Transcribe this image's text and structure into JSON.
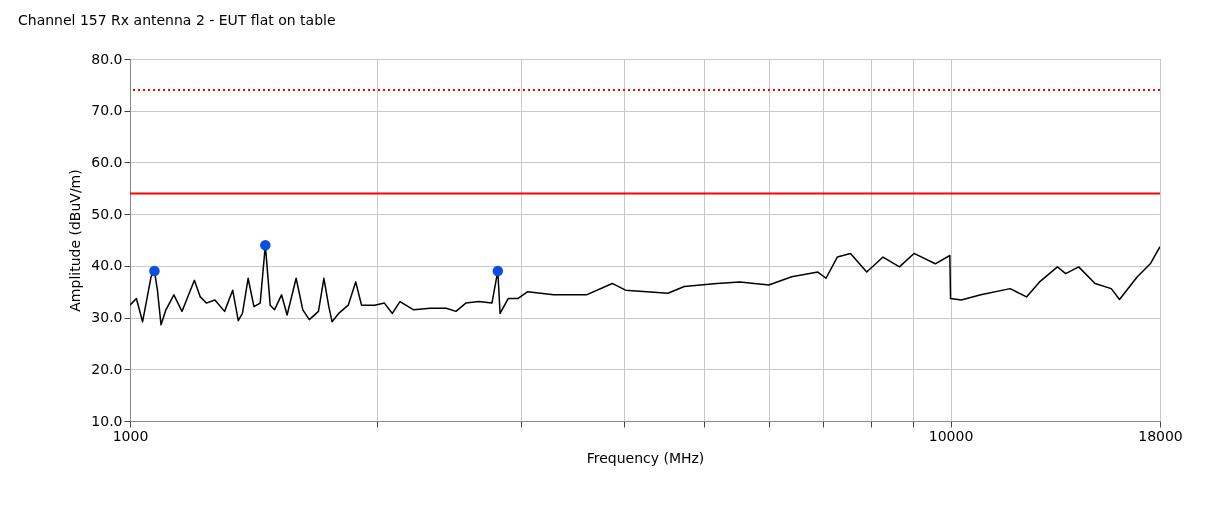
{
  "chart_data": {
    "type": "line",
    "title": "Channel 157 Rx antenna 2 - EUT flat on table",
    "xlabel": "Frequency (MHz)",
    "ylabel": "Amplitude (dBuV/m)",
    "log": "x",
    "grid": true,
    "xlim": [
      1000,
      18000
    ],
    "xticks": [
      1000,
      {
        "value": 2000,
        "label": null
      },
      {
        "value": 3000,
        "label": null
      },
      {
        "value": 4000,
        "label": null
      },
      {
        "value": 5000,
        "label": null
      },
      {
        "value": 6000,
        "label": null
      },
      {
        "value": 7000,
        "label": null
      },
      {
        "value": 8000,
        "label": null
      },
      {
        "value": 9000,
        "label": null
      },
      10000,
      18000
    ],
    "ylim": [
      10,
      80
    ],
    "yticks": [
      {
        "value": 10,
        "label": "10.0"
      },
      {
        "value": 20,
        "label": "20.0"
      },
      {
        "value": 30,
        "label": "30.0"
      },
      {
        "value": 40,
        "label": "40.0"
      },
      {
        "value": 50,
        "label": "50.0"
      },
      {
        "value": 60,
        "label": "60.0"
      },
      {
        "value": 70,
        "label": "70.0"
      },
      {
        "value": 80,
        "label": "80.0"
      }
    ],
    "ref_lines": [
      {
        "axis": "y",
        "value": 74,
        "color": "#ff0000",
        "line_style": "dotted"
      },
      {
        "axis": "y",
        "value": 54,
        "color": "#ff0000",
        "line_style": "solid"
      }
    ],
    "series": [
      {
        "type": "line",
        "color": "#000000",
        "marker": "none",
        "x": [
          1000,
          1018,
          1036,
          1061,
          1071,
          1080,
          1091,
          1106,
          1131,
          1157,
          1172,
          1198,
          1218,
          1239,
          1269,
          1304,
          1334,
          1355,
          1371,
          1393,
          1416,
          1441,
          1462,
          1482,
          1500,
          1530,
          1554,
          1594,
          1624,
          1654,
          1697,
          1723,
          1747,
          1763,
          1796,
          1845,
          1884,
          1915,
          1987,
          2042,
          2088,
          2133,
          2217,
          2321,
          2429,
          2496,
          2566,
          2661,
          2761,
          2807,
          2825,
          2891,
          2972,
          3053,
          3282,
          3600,
          3870,
          4017,
          4525,
          4737,
          5190,
          5533,
          6006,
          6404,
          6891,
          7051,
          7278,
          7551,
          7904,
          8275,
          8664,
          9027,
          9581,
          9980,
          10000,
          10307,
          10888,
          11822,
          12377,
          12837,
          13499,
          13814,
          14328,
          15001,
          15700,
          16066,
          16890,
          17516,
          18000
        ],
        "values": [
          32.4,
          33.7,
          29.2,
          37.9,
          39,
          35.3,
          28.6,
          31.5,
          34.4,
          31.2,
          33.4,
          37.2,
          34,
          32.8,
          33.4,
          31.2,
          35.3,
          29.4,
          30.8,
          37.6,
          32.1,
          32.8,
          44,
          32.4,
          31.5,
          34.4,
          30.5,
          37.6,
          31.5,
          29.6,
          31.2,
          37.6,
          32.1,
          29.2,
          30.8,
          32.4,
          36.9,
          32.4,
          32.4,
          32.8,
          30.8,
          33.1,
          31.5,
          31.8,
          31.8,
          31.2,
          32.8,
          33.1,
          32.8,
          39,
          30.8,
          33.7,
          33.7,
          35,
          34.4,
          34.4,
          36.6,
          35.3,
          34.7,
          36,
          36.6,
          36.9,
          36.3,
          37.9,
          38.8,
          37.6,
          41.7,
          42.4,
          38.8,
          41.7,
          39.8,
          42.4,
          40.4,
          42,
          33.7,
          33.4,
          34.4,
          35.6,
          34,
          36.9,
          39.8,
          38.5,
          39.8,
          36.6,
          35.6,
          33.5,
          37.9,
          40.4,
          43.7
        ]
      },
      {
        "type": "scatter",
        "color": "#0a4fe0",
        "marker": "circle",
        "x": [
          1071,
          1462,
          2807
        ],
        "values": [
          39,
          44,
          39
        ]
      }
    ]
  }
}
